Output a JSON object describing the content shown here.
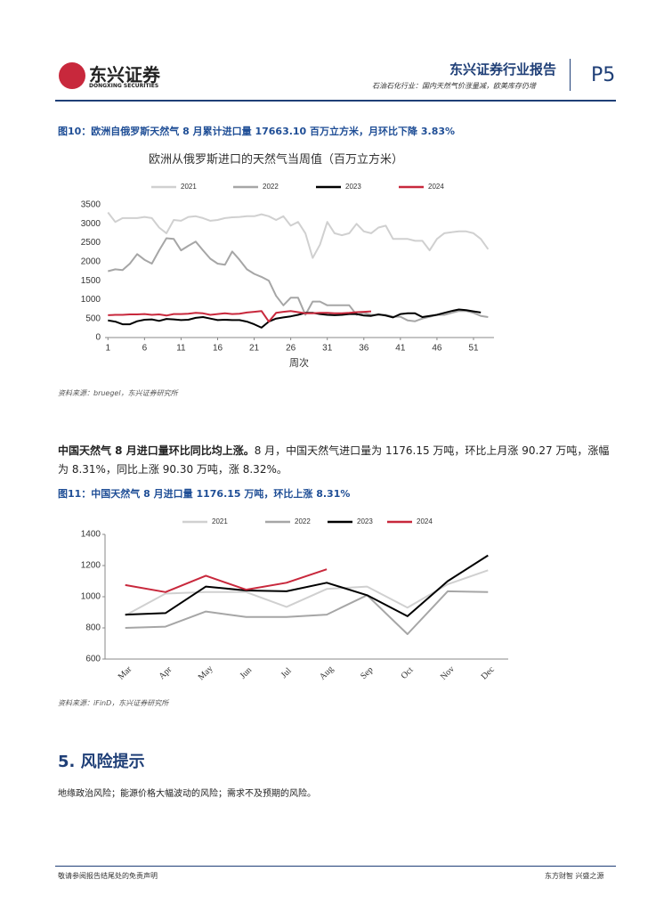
{
  "header": {
    "logo": "东兴证券",
    "logo_en": "DONGXING SECURITIES",
    "report": "东兴证券行业报告",
    "subtitle": "石油石化行业：国内天然气价涨量减，欧美库存仍增",
    "page": "P5"
  },
  "document": {
    "fig10_caption": "图10：欧洲自俄罗斯天然气 8 月累计进口量 17663.10 百万立方米，月环比下降 3.83%",
    "fig10_source": "资料来源：bruegel，东兴证券研究所",
    "para_bold": "中国天然气 8 月进口量环比同比均上涨。",
    "para_text": "8 月，中国天然气进口量为 1176.15 万吨，环比上月涨 90.27 万吨，涨幅为 8.31%，同比上涨 90.30 万吨，涨 8.32%。",
    "fig11_caption": "图11：中国天然气 8 月进口量 1176.15 万吨，环比上涨 8.31%",
    "fig11_source": "资料来源：iFinD，东兴证券研究所",
    "section": "5. 风险提示",
    "risk": "地缘政治风险；能源价格大幅波动的风险；需求不及预期的风险。",
    "footer_left": "敬请参阅报告结尾处的免责声明",
    "footer_right": "东方财智 兴盛之源"
  },
  "chart_data": [
    {
      "type": "line",
      "title": "欧洲从俄罗斯进口的天然气当周值（百万立方米）",
      "xlabel": "周次",
      "x": [
        1,
        2,
        3,
        4,
        5,
        6,
        7,
        8,
        9,
        10,
        11,
        12,
        13,
        14,
        15,
        16,
        17,
        18,
        19,
        20,
        21,
        22,
        23,
        24,
        25,
        26,
        27,
        28,
        29,
        30,
        31,
        32,
        33,
        34,
        35,
        36,
        37,
        38,
        39,
        40,
        41,
        42,
        43,
        44,
        45,
        46,
        47,
        48,
        49,
        50,
        51,
        52,
        53
      ],
      "xlim": [
        0.6,
        53.8
      ],
      "xticks": [
        1,
        6,
        11,
        16,
        21,
        26,
        31,
        36,
        41,
        46,
        51
      ],
      "ylim": [
        0,
        3500
      ],
      "yticks": [
        0,
        500,
        1000,
        1500,
        2000,
        2500,
        3000,
        3500
      ],
      "series": [
        {
          "name": "2021",
          "color": "#d0d0d0",
          "values": [
            3300,
            3050,
            3150,
            3150,
            3150,
            3180,
            3150,
            2900,
            2750,
            3100,
            3080,
            3180,
            3200,
            3150,
            3080,
            3100,
            3150,
            3170,
            3180,
            3200,
            3200,
            3250,
            3200,
            3100,
            3200,
            2950,
            3050,
            2750,
            2100,
            2450,
            3050,
            2750,
            2700,
            2750,
            3000,
            2800,
            2750,
            2900,
            2950,
            2600,
            2600,
            2600,
            2550,
            2550,
            2300,
            2600,
            2750,
            2780,
            2800,
            2800,
            2750,
            2600,
            2330
          ]
        },
        {
          "name": "2022",
          "color": "#a6a6a6",
          "values": [
            1750,
            1800,
            1780,
            1950,
            2200,
            2050,
            1950,
            2300,
            2620,
            2600,
            2300,
            2420,
            2530,
            2300,
            2080,
            1950,
            1920,
            2270,
            2050,
            1800,
            1680,
            1600,
            1500,
            1100,
            850,
            1050,
            1050,
            600,
            950,
            950,
            850,
            850,
            850,
            850,
            600,
            650,
            600,
            600,
            600,
            550,
            550,
            450,
            430,
            500,
            550,
            600,
            600,
            650,
            700,
            700,
            650,
            570,
            540
          ]
        },
        {
          "name": "2023",
          "color": "#000000",
          "values": [
            450,
            420,
            350,
            350,
            430,
            470,
            480,
            440,
            490,
            480,
            460,
            470,
            520,
            540,
            500,
            460,
            470,
            460,
            460,
            420,
            350,
            260,
            420,
            500,
            530,
            560,
            600,
            650,
            650,
            620,
            600,
            590,
            600,
            620,
            620,
            580,
            570,
            610,
            580,
            530,
            620,
            640,
            640,
            540,
            570,
            600,
            650,
            700,
            740,
            720,
            690,
            660,
            null
          ]
        },
        {
          "name": "2024",
          "color": "#c8283c",
          "values": [
            590,
            600,
            600,
            610,
            610,
            620,
            600,
            610,
            580,
            620,
            620,
            630,
            650,
            640,
            600,
            620,
            640,
            620,
            630,
            660,
            680,
            700,
            420,
            650,
            680,
            700,
            670,
            640,
            640,
            650,
            650,
            640,
            640,
            650,
            670,
            680,
            690,
            null,
            null,
            null,
            null,
            null,
            null,
            null,
            null,
            null,
            null,
            null,
            null,
            null,
            null,
            null,
            null
          ]
        }
      ]
    },
    {
      "type": "line",
      "categories": [
        "Mar",
        "Apr",
        "May",
        "Jun",
        "Jul",
        "Aug",
        "Sep",
        "Oct",
        "Nov",
        "Dec"
      ],
      "ylim": [
        600,
        1400
      ],
      "yticks": [
        600,
        800,
        1000,
        1200,
        1400
      ],
      "series": [
        {
          "name": "2021",
          "color": "#d0d0d0",
          "values": [
            880,
            1020,
            1030,
            1030,
            935,
            1050,
            1065,
            930,
            1080,
            1170
          ]
        },
        {
          "name": "2022",
          "color": "#a6a6a6",
          "values": [
            800,
            808,
            905,
            870,
            870,
            885,
            1010,
            760,
            1035,
            1030
          ]
        },
        {
          "name": "2023",
          "color": "#000000",
          "values": [
            885,
            895,
            1065,
            1040,
            1035,
            1090,
            1010,
            875,
            1100,
            1265
          ]
        },
        {
          "name": "2024",
          "color": "#c8283c",
          "values": [
            1075,
            1030,
            1135,
            1045,
            1090,
            1176.15,
            null,
            null,
            null,
            null
          ]
        }
      ]
    }
  ]
}
